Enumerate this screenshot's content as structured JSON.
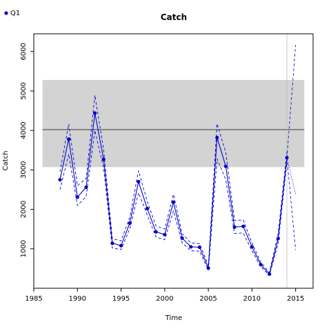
{
  "chart_data": {
    "type": "line",
    "title": "Catch",
    "xlabel": "Time",
    "ylabel": "Catch",
    "xlim": [
      1985,
      2017
    ],
    "ylim": [
      0,
      6450
    ],
    "xticks": [
      "1985",
      "1990",
      "1995",
      "2000",
      "2005",
      "2010",
      "2015"
    ],
    "yticks": [
      "1000",
      "2000",
      "3000",
      "4000",
      "5000",
      "6000"
    ],
    "grid": false,
    "legend": {
      "position": "top-left",
      "label": "Q1"
    },
    "colors": {
      "series": "#0000cc",
      "band": "#d3d3d3",
      "reference": "#000000",
      "vline": "#bbbbbb"
    },
    "reference_band": {
      "x": [
        1986,
        2016
      ],
      "lower": 3070,
      "upper": 5280
    },
    "reference_line": {
      "x": [
        1986,
        2016
      ],
      "y": 4020
    },
    "vertical_line": {
      "x": 2014
    },
    "series": [
      {
        "name": "Q1",
        "x": [
          1988,
          1989,
          1990,
          1991,
          1992,
          1993,
          1994,
          1995,
          1996,
          1997,
          1998,
          1999,
          2000,
          2001,
          2002,
          2003,
          2004,
          2005,
          2006,
          2007,
          2008,
          2009,
          2010,
          2011,
          2012,
          2013,
          2014
        ],
        "y": [
          2750,
          3780,
          2310,
          2560,
          4440,
          3270,
          1140,
          1080,
          1650,
          2700,
          2020,
          1430,
          1360,
          2180,
          1270,
          1050,
          1040,
          510,
          3820,
          3090,
          1550,
          1570,
          1050,
          600,
          360,
          1260,
          3310
        ]
      }
    ],
    "upper_bound": {
      "x": [
        1988,
        1989,
        1990,
        1991,
        1992,
        1993,
        1994,
        1995,
        1996,
        1997,
        1998,
        1999,
        2000,
        2001,
        2002,
        2003,
        2004,
        2005,
        2006,
        2007,
        2008,
        2009,
        2010,
        2011,
        2012,
        2013,
        2014
      ],
      "y": [
        2950,
        4160,
        2600,
        2780,
        4890,
        3520,
        1260,
        1200,
        1800,
        2980,
        2200,
        1580,
        1500,
        2380,
        1380,
        1150,
        1130,
        580,
        4170,
        3440,
        1720,
        1730,
        1150,
        660,
        400,
        1390,
        3450
      ]
    },
    "lower_bound": {
      "x": [
        1988,
        1989,
        1990,
        1991,
        1992,
        1993,
        1994,
        1995,
        1996,
        1997,
        1998,
        1999,
        2000,
        2001,
        2002,
        2003,
        2004,
        2005,
        2006,
        2007,
        2008,
        2009,
        2010,
        2011,
        2012,
        2013,
        2014
      ],
      "y": [
        2500,
        3400,
        2100,
        2320,
        4000,
        3050,
        1020,
        980,
        1510,
        2420,
        1860,
        1300,
        1230,
        1960,
        1150,
        950,
        940,
        460,
        3280,
        2750,
        1390,
        1400,
        950,
        550,
        330,
        1140,
        3200
      ]
    },
    "projections": [
      {
        "x": [
          2014,
          2015
        ],
        "y": [
          3310,
          6170
        ]
      },
      {
        "x": [
          2014,
          2015
        ],
        "y": [
          3310,
          2380
        ]
      },
      {
        "x": [
          2014,
          2015
        ],
        "y": [
          3310,
          970
        ]
      }
    ]
  }
}
